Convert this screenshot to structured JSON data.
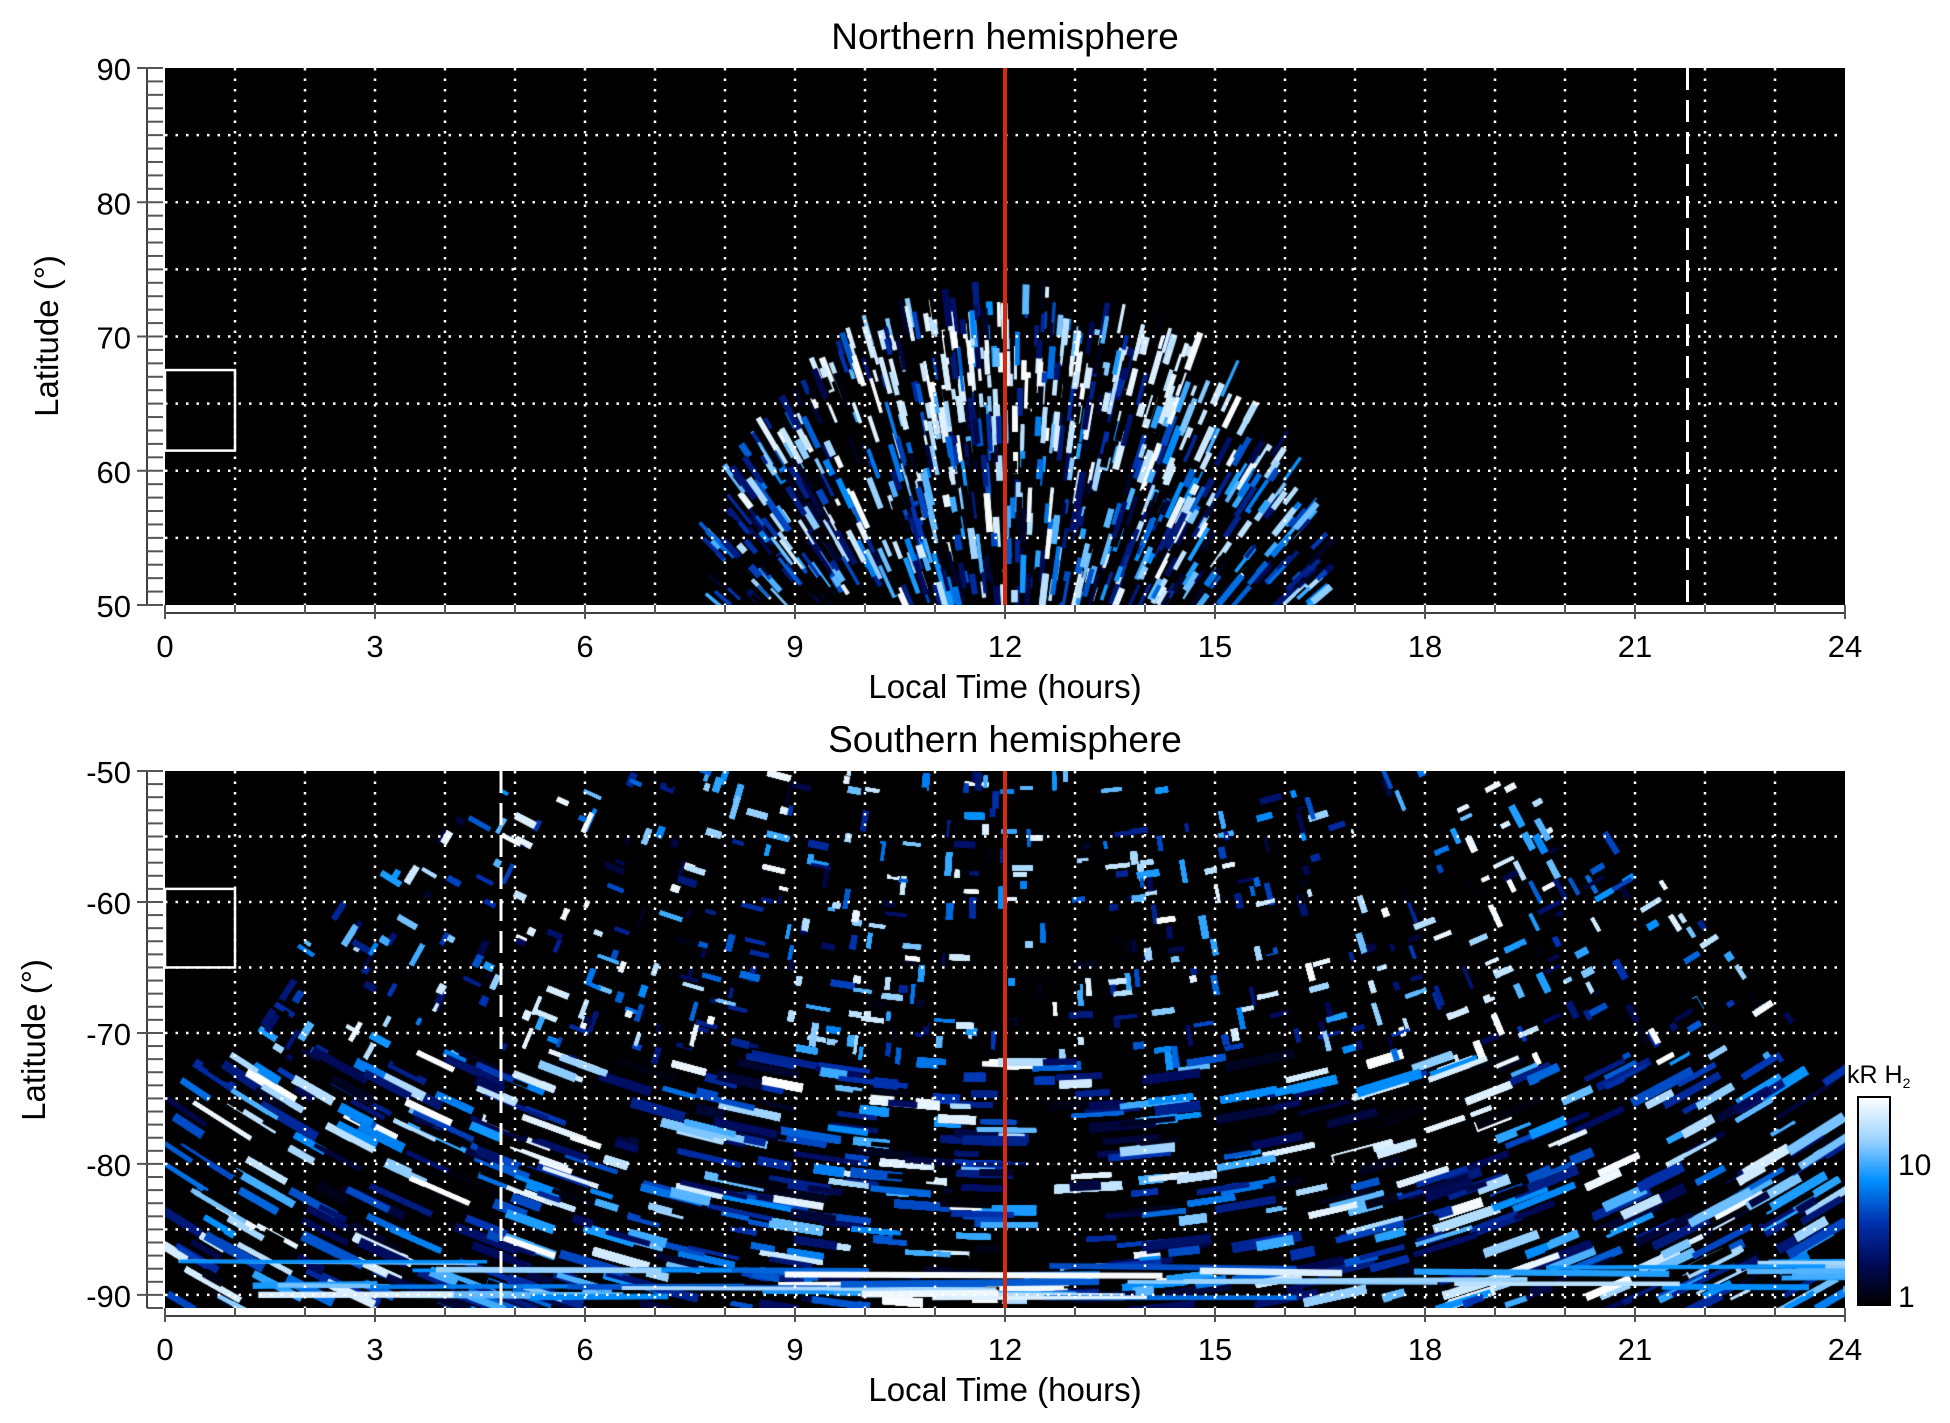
{
  "chart_data": [
    {
      "type": "heatmap",
      "title": "Northern hemisphere",
      "xlabel": "Local Time (hours)",
      "ylabel": "Latitude (°)",
      "xlim": [
        0,
        24
      ],
      "ylim": [
        50,
        90
      ],
      "xticks": [
        "0",
        "3",
        "6",
        "9",
        "12",
        "15",
        "18",
        "21",
        "24"
      ],
      "yticks": [
        "50",
        "60",
        "70",
        "80",
        "90"
      ],
      "grid": true,
      "emission_region": {
        "lt_min_at_50": 7.7,
        "lt_max_at_50": 16.6,
        "peak_lat": 73,
        "peak_lt": 12
      },
      "markers": {
        "solid_red_line_lt": 12,
        "dashed_white_line_lt": 21.75,
        "box": {
          "lt": [
            0,
            1
          ],
          "lat": [
            61.5,
            67.5
          ]
        }
      }
    },
    {
      "type": "heatmap",
      "title": "Southern hemisphere",
      "xlabel": "Local Time (hours)",
      "ylabel": "Latitude (°)",
      "xlim": [
        0,
        24
      ],
      "ylim": [
        -91,
        -50
      ],
      "xticks": [
        "0",
        "3",
        "6",
        "9",
        "12",
        "15",
        "18",
        "21",
        "24"
      ],
      "yticks": [
        "-50",
        "-60",
        "-70",
        "-80",
        "-90"
      ],
      "grid": true,
      "emission_region": {
        "lt_min_at_minus50": 5.7,
        "lt_max_at_minus50": 18.6,
        "edge_lat_at_lt0_24": -75
      },
      "markers": {
        "solid_red_line_lt": 12,
        "dashed_white_line_lt": 4.8,
        "box": {
          "lt": [
            0,
            1
          ],
          "lat": [
            -65,
            -59
          ]
        }
      }
    }
  ],
  "colorbar": {
    "label": "kR H",
    "label_sub": "2",
    "scale": "log",
    "range": [
      1,
      30
    ],
    "ticks": [
      "1",
      "10"
    ],
    "colors": [
      "#000000",
      "#000a5a",
      "#0033b0",
      "#0090ff",
      "#9fd4ff",
      "#ffffff"
    ]
  },
  "colors": {
    "noon_line": "#d42a10",
    "grid": "#ffffff",
    "background": "#000000"
  }
}
